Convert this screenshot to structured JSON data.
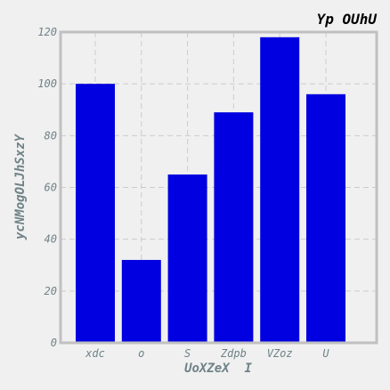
{
  "chart_data": {
    "type": "bar",
    "title": "Yp OUhU",
    "xlabel": "UoXZeX  I",
    "ylabel": "ycNMogOLJhSxzY",
    "categories": [
      "xdc",
      "o",
      "S",
      "Zdpb",
      "VZoz",
      "U"
    ],
    "values": [
      100,
      32,
      65,
      89,
      118,
      96
    ],
    "ylim": [
      0,
      120
    ],
    "yticks": [
      0,
      20,
      40,
      60,
      80,
      100,
      120
    ],
    "grid": true,
    "bar_color": "#0000e0",
    "grid_color": "#cccccc",
    "frame_color": "#c0c0c0"
  }
}
